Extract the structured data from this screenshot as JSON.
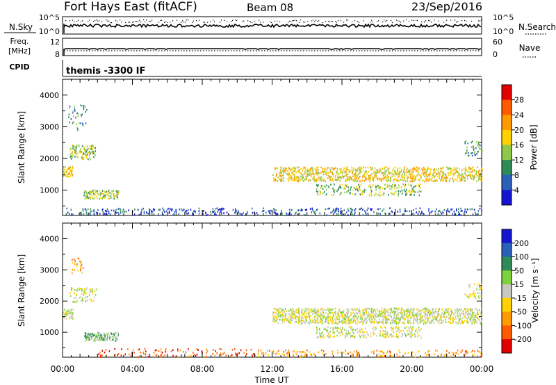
{
  "header": {
    "station": "Fort Hays East (fitACF)",
    "beam": "Beam 08",
    "date": "23/Sep/2016"
  },
  "strip_noise": {
    "left_label": "N.Sky",
    "right_label": "N.Search",
    "left_ticks": [
      "10^5",
      "10^0"
    ],
    "right_ticks": [
      "10^5",
      "10^0"
    ]
  },
  "strip_freq": {
    "left_label_1": "Freq.",
    "left_label_2": "[MHz]",
    "right_label": "Nave",
    "left_ticks": [
      "12",
      "8"
    ],
    "right_ticks": [
      "60",
      "0"
    ]
  },
  "strip_cpid": {
    "label": "CPID",
    "text": "themis -3300 IF"
  },
  "chart_data": [
    {
      "type": "heatmap",
      "name": "Power",
      "ylabel": "Slant Range [km]",
      "xlabel": "",
      "yticks": [
        "4000",
        "3000",
        "2000",
        "1000"
      ],
      "ylim": [
        200,
        4500
      ],
      "xlim_hours": [
        0,
        24
      ],
      "colorbar": {
        "label": "Power [dB]",
        "ticks": [
          "28",
          "24",
          "20",
          "16",
          "12",
          "8",
          "4"
        ],
        "colors": [
          "#e00000",
          "#ff5a00",
          "#ff9a00",
          "#ffd200",
          "#8fc84a",
          "#2e8b57",
          "#2b5fb8",
          "#1515d0"
        ]
      },
      "scatter_regions": [
        {
          "hours": [
            0.0,
            0.6
          ],
          "km": [
            1450,
            1750
          ],
          "level": 3,
          "density": 0.8
        },
        {
          "hours": [
            0.4,
            1.9
          ],
          "km": [
            2000,
            2450
          ],
          "level": 4,
          "density": 0.5
        },
        {
          "hours": [
            0.3,
            1.4
          ],
          "km": [
            2900,
            3700
          ],
          "level": 5,
          "density": 0.15
        },
        {
          "hours": [
            1.2,
            3.2
          ],
          "km": [
            750,
            1000
          ],
          "level": 4,
          "density": 0.7
        },
        {
          "hours": [
            0.0,
            24.0
          ],
          "km": [
            230,
            450
          ],
          "level": 6,
          "density": 0.25
        },
        {
          "hours": [
            12.0,
            24.0
          ],
          "km": [
            1300,
            1750
          ],
          "level": 3,
          "density": 0.55
        },
        {
          "hours": [
            14.5,
            20.5
          ],
          "km": [
            850,
            1200
          ],
          "level": 4,
          "density": 0.3
        },
        {
          "hours": [
            23.0,
            24.0
          ],
          "km": [
            2100,
            2600
          ],
          "level": 5,
          "density": 0.3
        }
      ]
    },
    {
      "type": "heatmap",
      "name": "Velocity",
      "ylabel": "Slant Range [km]",
      "xlabel": "Time UT",
      "xticks": [
        "00:00",
        "04:00",
        "08:00",
        "12:00",
        "16:00",
        "20:00",
        "00:00"
      ],
      "yticks": [
        "4000",
        "3000",
        "2000",
        "1000"
      ],
      "ylim": [
        200,
        4500
      ],
      "xlim_hours": [
        0,
        24
      ],
      "colorbar": {
        "label": "Velocity [m s⁻¹]",
        "ticks": [
          "200",
          "100",
          "50",
          "15",
          "-15",
          "-50",
          "-100",
          "-200"
        ],
        "colors": [
          "#1515d0",
          "#2b5fb8",
          "#2e8b57",
          "#7fd13b",
          "#c8c8c0",
          "#ffd200",
          "#ff9a00",
          "#ff5a00",
          "#e00000"
        ]
      },
      "scatter_regions": [
        {
          "hours": [
            0.0,
            0.6
          ],
          "km": [
            1450,
            1750
          ],
          "level": 4,
          "density": 0.7
        },
        {
          "hours": [
            0.4,
            1.9
          ],
          "km": [
            2000,
            2450
          ],
          "level": 4,
          "density": 0.4
        },
        {
          "hours": [
            0.5,
            1.2
          ],
          "km": [
            2900,
            3400
          ],
          "level": 6,
          "density": 0.3
        },
        {
          "hours": [
            1.2,
            3.2
          ],
          "km": [
            750,
            1000
          ],
          "level": 3,
          "density": 0.7
        },
        {
          "hours": [
            2.0,
            11.0
          ],
          "km": [
            230,
            500
          ],
          "level": 7,
          "density": 0.18
        },
        {
          "hours": [
            11.0,
            24.0
          ],
          "km": [
            230,
            450
          ],
          "level": 6,
          "density": 0.2
        },
        {
          "hours": [
            12.0,
            24.0
          ],
          "km": [
            1300,
            1800
          ],
          "level": 4,
          "density": 0.6
        },
        {
          "hours": [
            14.5,
            20.5
          ],
          "km": [
            850,
            1200
          ],
          "level": 4,
          "density": 0.35
        },
        {
          "hours": [
            23.0,
            24.0
          ],
          "km": [
            2100,
            2600
          ],
          "level": 4,
          "density": 0.3
        }
      ]
    }
  ]
}
